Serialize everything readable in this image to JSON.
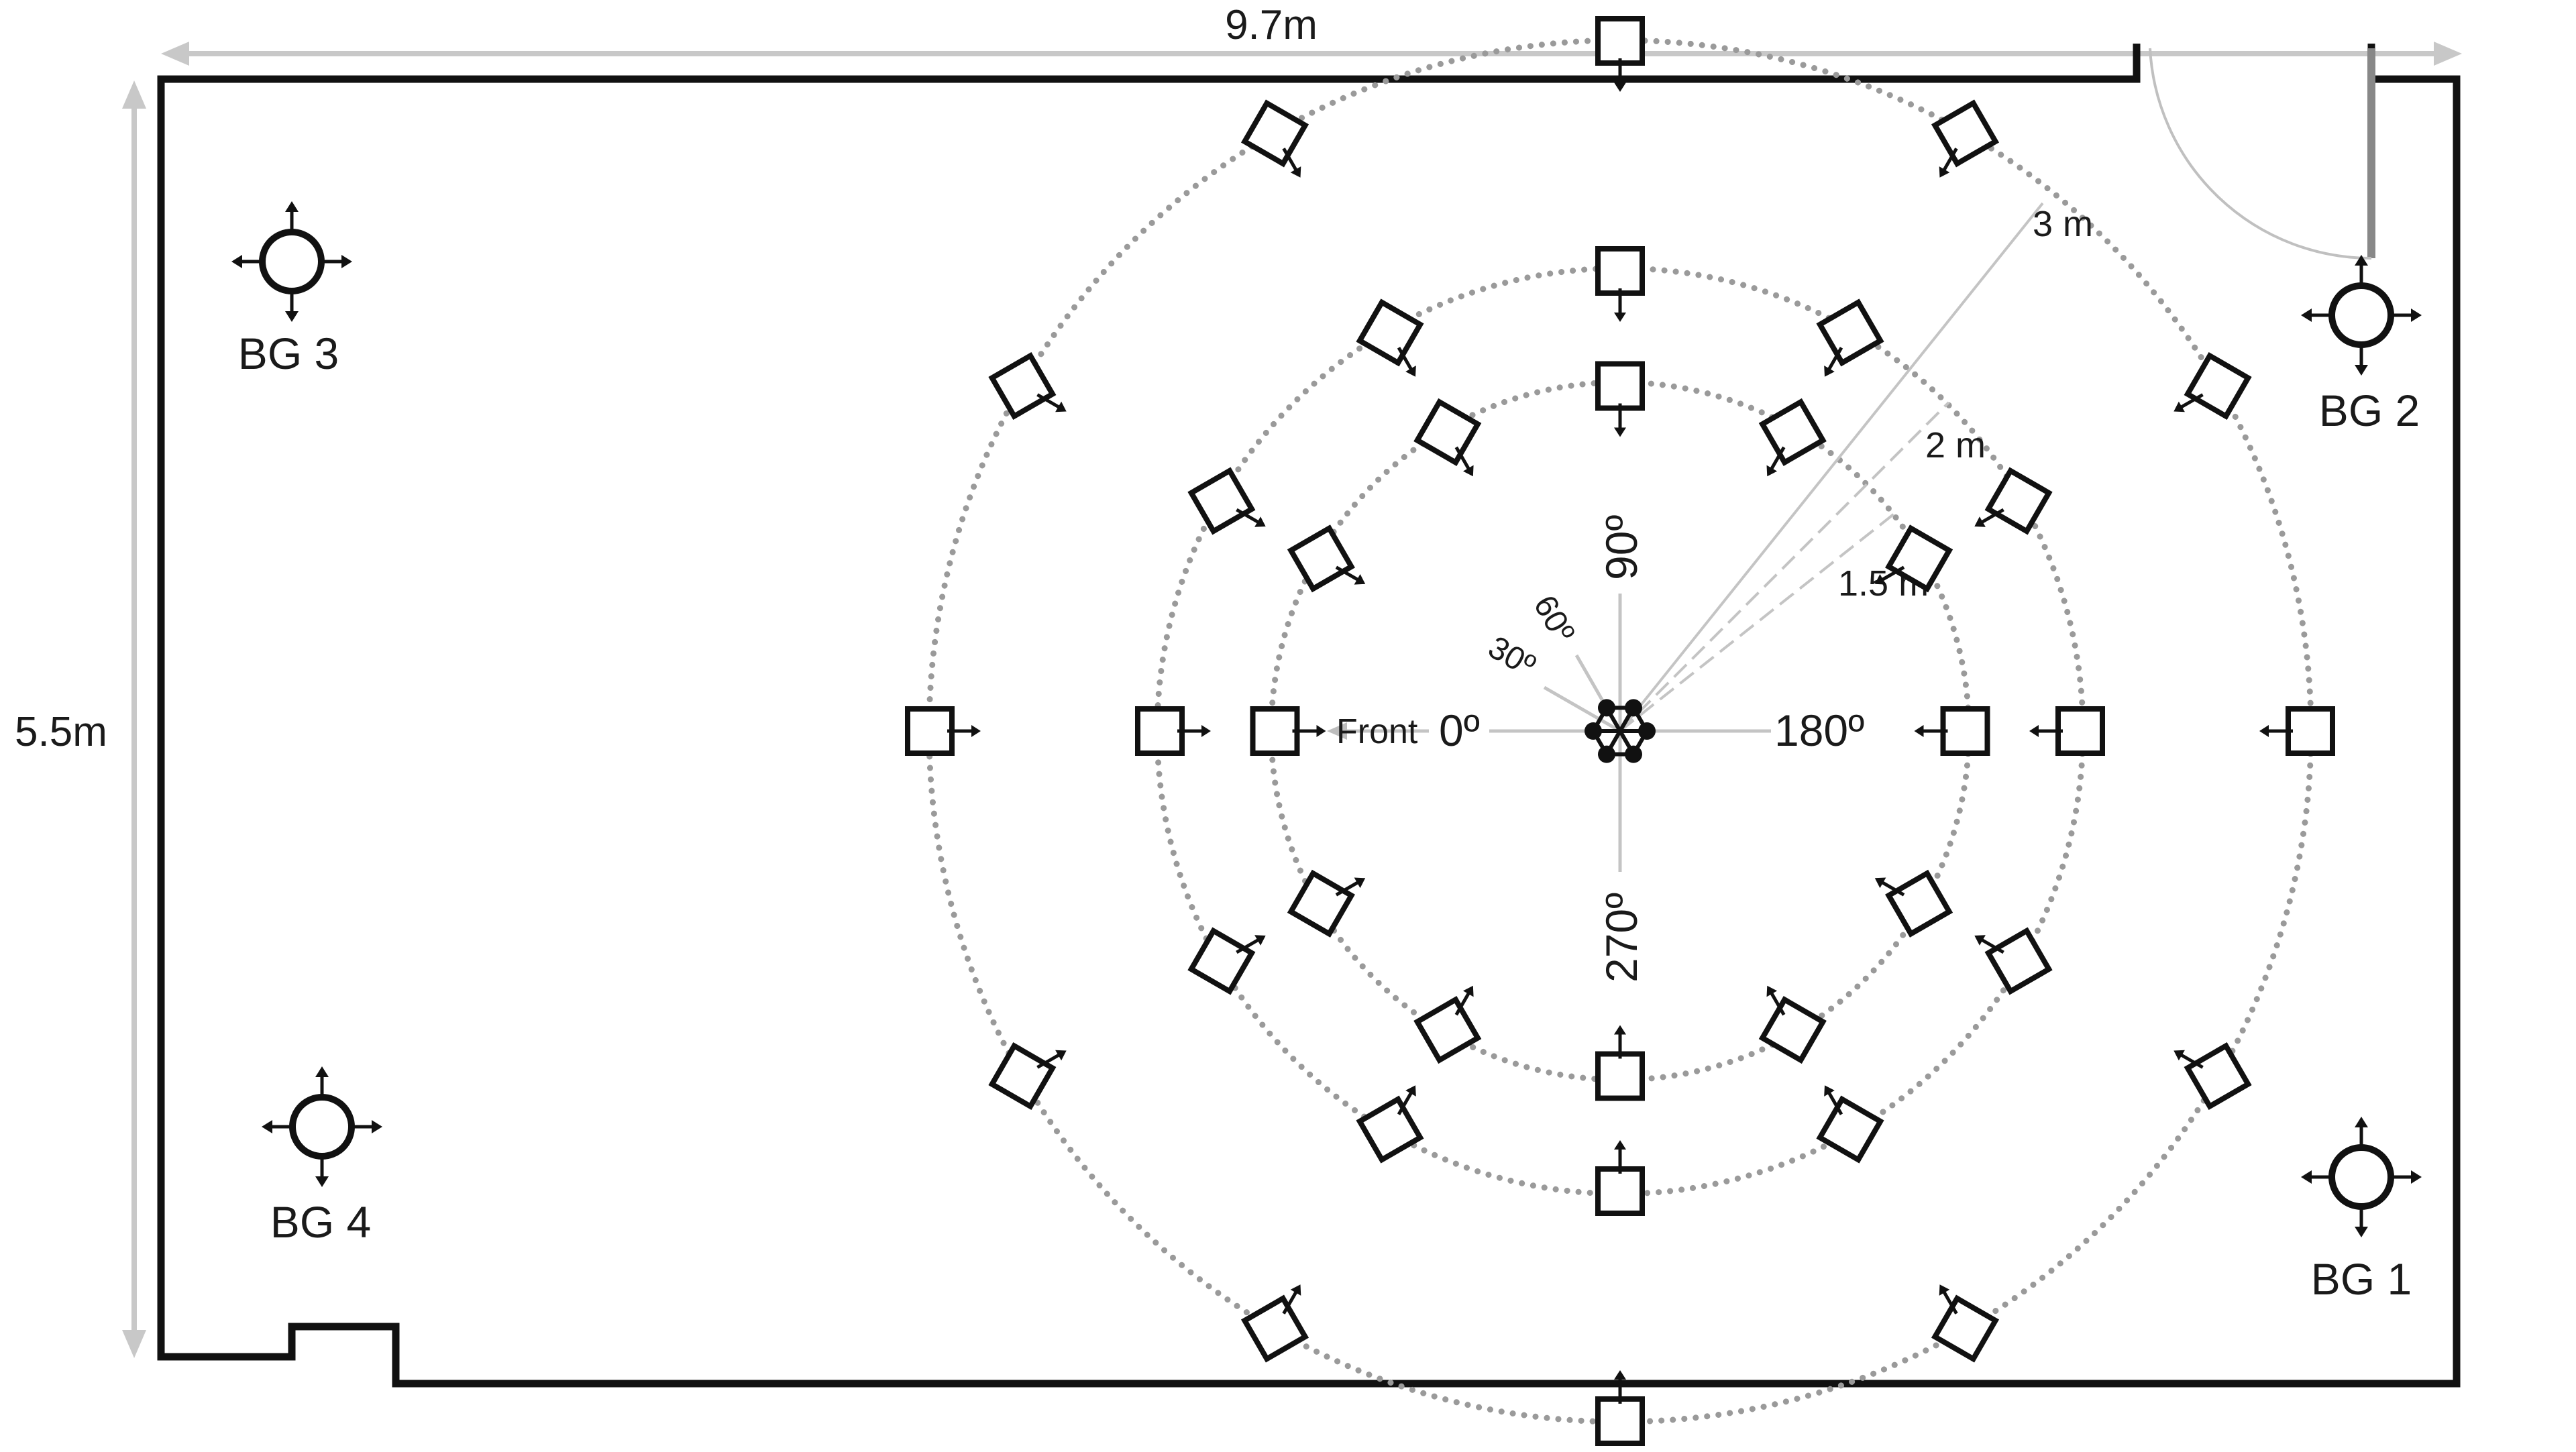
{
  "room": {
    "width_label": "9.7m",
    "height_label": "5.5m"
  },
  "rings": {
    "r1_5": "1.5 m",
    "r2": "2 m",
    "r3": "3 m"
  },
  "angles": {
    "deg0": "0º",
    "deg30": "30º",
    "deg60": "60º",
    "deg90": "90º",
    "deg180": "180º",
    "deg270": "270º",
    "front": "Front"
  },
  "background_sources": {
    "bg1": "BG 1",
    "bg2": "BG 2",
    "bg3": "BG 3",
    "bg4": "BG 4"
  },
  "colors": {
    "wall": "#111111",
    "dimension": "#c8c8c8",
    "ring": "#9a9a9a",
    "guide": "#c4c4c4"
  },
  "speaker_layout": {
    "rings_m": [
      1.5,
      2,
      3
    ],
    "azimuths_deg": [
      0,
      30,
      60,
      90,
      120,
      150,
      180,
      210,
      240,
      270,
      300,
      330
    ]
  }
}
